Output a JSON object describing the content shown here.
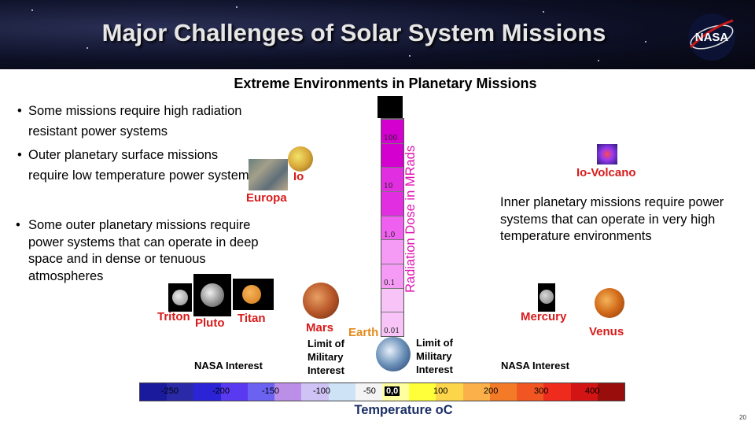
{
  "slide": {
    "title": "Major Challenges of Solar System Missions",
    "logo_text": "NASA",
    "subtitle": "Extreme Environments in Planetary Missions",
    "page_number": "20"
  },
  "bullets_left": [
    "Some missions require high radiation resistant power systems",
    "Outer planetary surface missions require low temperature power systems",
    "Some outer planetary missions require power systems that can operate in deep space and in dense or tenuous atmospheres"
  ],
  "inner_text": "Inner planetary missions require power systems that can operate in very high  temperature environments",
  "planets": {
    "europa": "Europa",
    "io": "Io",
    "io_volcano": "Io-Volcano",
    "triton": "Triton",
    "pluto": "Pluto",
    "titan": "Titan",
    "mars": "Mars",
    "earth": "Earth",
    "mercury": "Mercury",
    "venus": "Venus"
  },
  "labels": {
    "nasa_interest_left": "NASA Interest",
    "nasa_interest_right": "NASA Interest",
    "military_left": "Limit of Military Interest",
    "military_right": "Limit of Military Interest",
    "radiation_axis": "Radiation Dose in MRads",
    "temperature_axis": "Temperature oC"
  },
  "radiation_ticks": [
    "100",
    "10",
    "1.0",
    "0.1",
    "0.01"
  ],
  "temperature_ticks": [
    "-250",
    "-200",
    "-150",
    "-100",
    "-50",
    "0,0",
    "100",
    "200",
    "300",
    "400"
  ],
  "colors": {
    "temperature_scale": [
      "#1a1a9c",
      "#2a2aa8",
      "#2b24d6",
      "#5a3af0",
      "#6b62f2",
      "#bb8ee8",
      "#cfc3f5",
      "#cfe3f7",
      "#f4f4f4",
      "#ffffa0",
      "#ffff3a",
      "#fcd54a",
      "#fbb04a",
      "#f37b27",
      "#f05522",
      "#ef2b1e",
      "#d21414",
      "#9a0d0d"
    ],
    "radiation_scale": [
      "#d300cf",
      "#e02ee0",
      "#f060f0",
      "#f59af5",
      "#f8c4f8"
    ],
    "planet_label": "#d91a1a",
    "earth_label": "#e58a1a",
    "radiation_label": "#e010b0",
    "temperature_label": "#1a2f66"
  }
}
